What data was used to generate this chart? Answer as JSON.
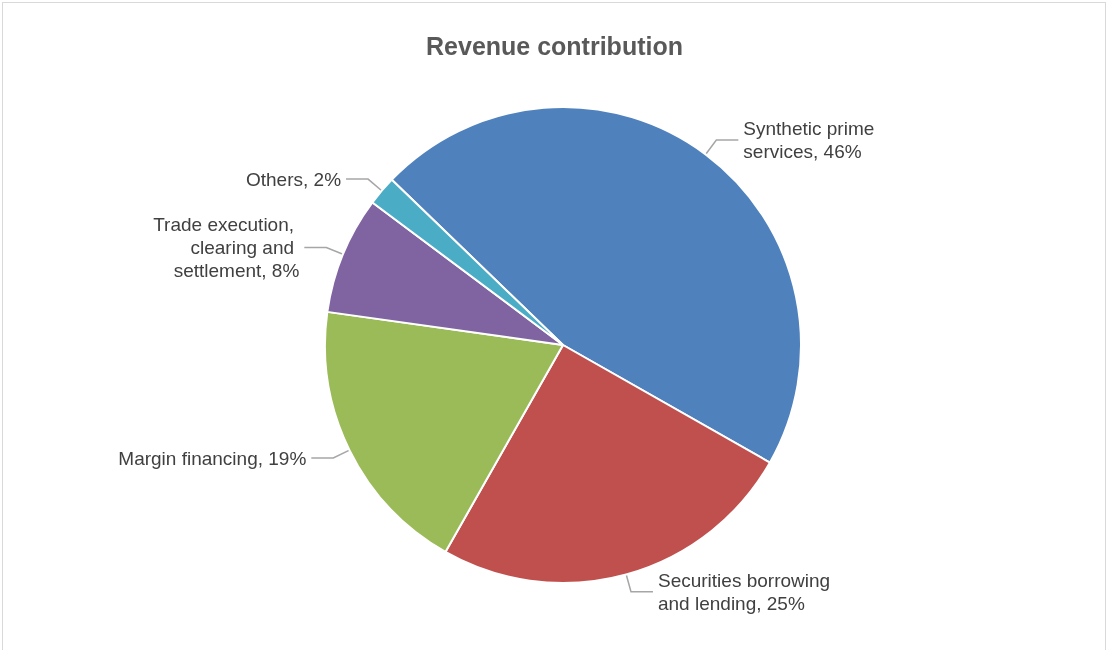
{
  "chart_data": {
    "type": "pie",
    "title": "Revenue contribution",
    "categories": [
      "Synthetic prime services",
      "Securities borrowing and lending",
      "Margin financing",
      "Trade execution, clearing and settlement",
      "Others"
    ],
    "values": [
      46,
      25,
      19,
      8,
      2
    ],
    "value_labels": [
      "46%",
      "25%",
      "19%",
      "8%",
      "2%"
    ],
    "colors": [
      "#4f81bd",
      "#c0504d",
      "#9bbb59",
      "#8064a2",
      "#4bacc6"
    ],
    "legend": false
  }
}
